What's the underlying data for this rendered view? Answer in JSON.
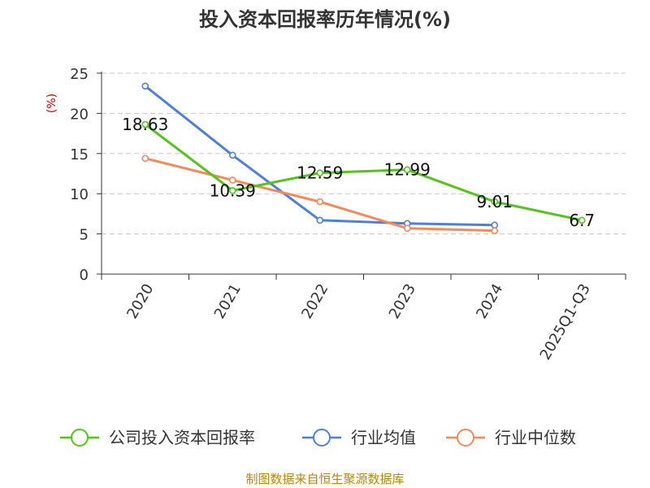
{
  "chart_data": {
    "type": "line",
    "title": "投入资本回报率历年情况(%)",
    "ylabel": "(%)",
    "xlabel": "",
    "categories": [
      "2020",
      "2021",
      "2022",
      "2023",
      "2024",
      "2025Q1-Q3"
    ],
    "ylim": [
      0,
      25
    ],
    "yticks": [
      0,
      5,
      10,
      15,
      20,
      25
    ],
    "grid": true,
    "legend_position": "bottom",
    "series": [
      {
        "name": "公司投入资本回报率",
        "color": "#52c41a",
        "values": [
          18.63,
          10.39,
          12.59,
          12.99,
          9.01,
          6.7
        ],
        "labels": [
          "18.63",
          "10.39",
          "12.59",
          "12.99",
          "9.01",
          "6.7"
        ]
      },
      {
        "name": "行业均值",
        "color": "#4e7fdc",
        "values": [
          23.4,
          14.8,
          6.7,
          6.3,
          6.1,
          null
        ]
      },
      {
        "name": "行业中位数",
        "color": "#f5895a",
        "values": [
          14.4,
          11.7,
          9.0,
          5.7,
          5.4,
          null
        ]
      }
    ]
  },
  "footer": {
    "source": "制图数据来自恒生聚源数据库"
  }
}
